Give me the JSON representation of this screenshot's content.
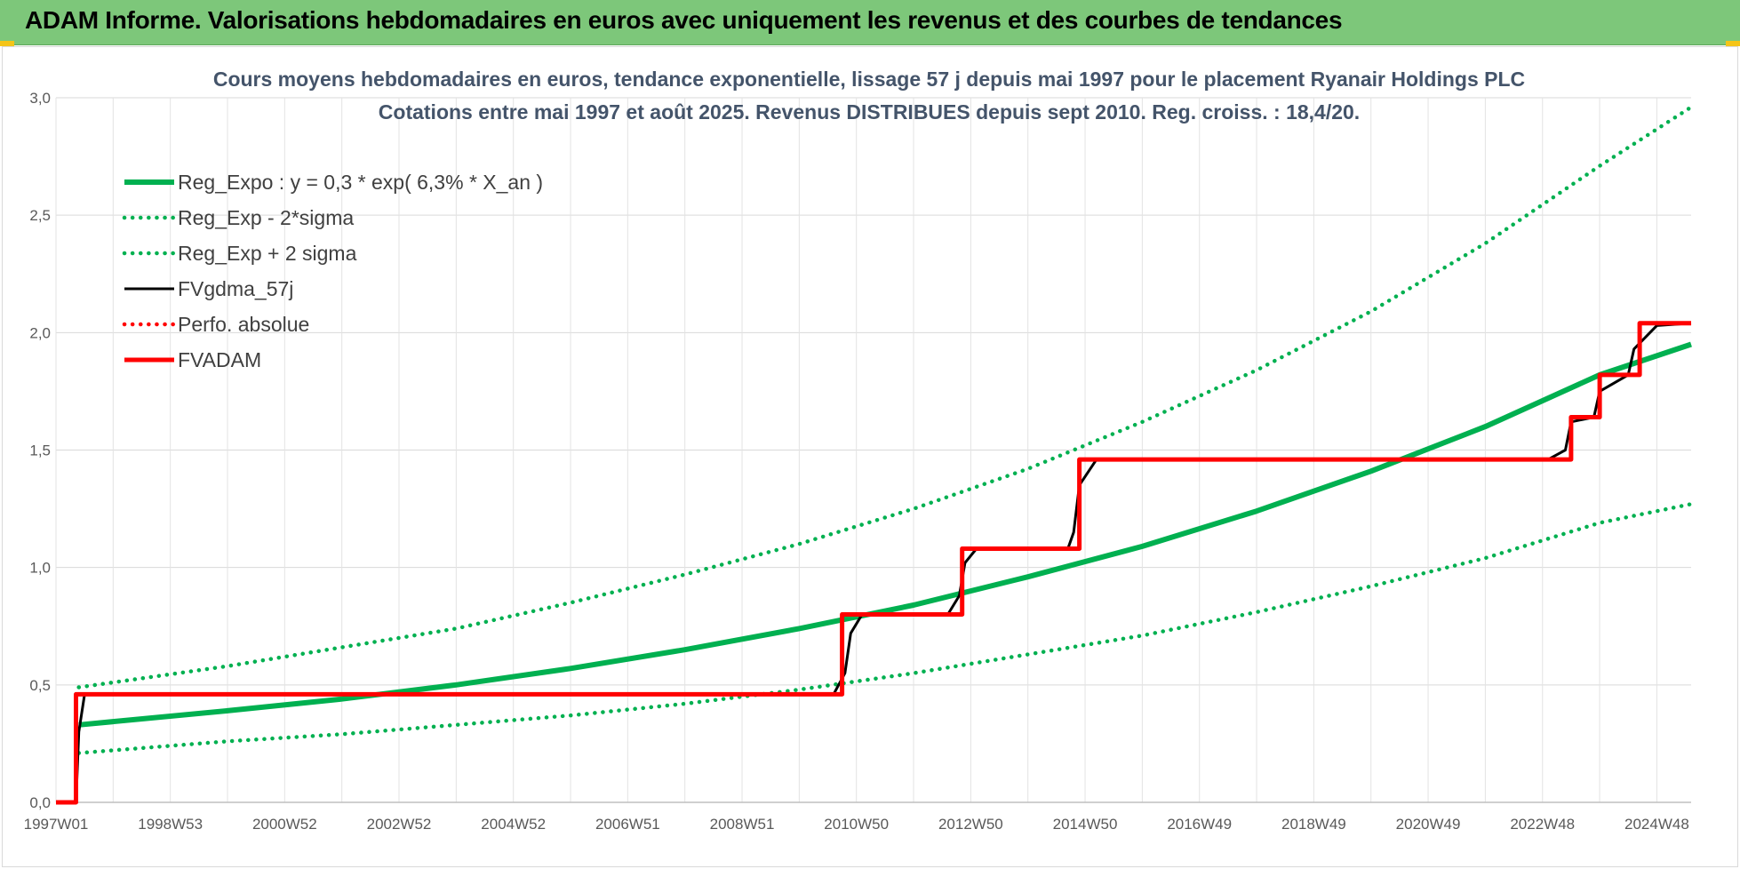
{
  "header": {
    "title": "ADAM Informe. Valorisations hebdomadaires en euros avec uniquement les revenus et des courbes de tendances"
  },
  "chart_data": {
    "type": "line",
    "title": "Cours moyens hebdomadaires en euros, tendance exponentielle, lissage 57 j depuis mai 1997 pour le placement Ryanair Holdings PLC",
    "subtitle": "Cotations entre mai 1997 et août 2025. Revenus DISTRIBUES depuis sept 2010. Reg. croiss. : 18,4/20.",
    "xlabel": "",
    "ylabel": "",
    "x_range": [
      1997.0,
      2025.6
    ],
    "ylim": [
      0,
      3.0
    ],
    "y_ticks": [
      "0,0",
      "0,5",
      "1,0",
      "1,5",
      "2,0",
      "2,5",
      "3,0"
    ],
    "y_tick_values": [
      0,
      0.5,
      1.0,
      1.5,
      2.0,
      2.5,
      3.0
    ],
    "x_ticks": [
      "1997W01",
      "1998W53",
      "2000W52",
      "2002W52",
      "2004W52",
      "2006W51",
      "2008W51",
      "2010W50",
      "2012W50",
      "2014W50",
      "2016W49",
      "2018W49",
      "2020W49",
      "2022W48",
      "2024W48"
    ],
    "x_tick_values": [
      1997.0,
      1999.0,
      2001.0,
      2003.0,
      2005.0,
      2007.0,
      2009.0,
      2011.0,
      2013.0,
      2015.0,
      2017.0,
      2019.0,
      2021.0,
      2023.0,
      2025.0
    ],
    "grid": true,
    "legend_position": "top-left",
    "series": [
      {
        "name": "Reg_Expo : y = 0,3 * exp( 6,3% *  X_an )",
        "style": "solid-thick",
        "color": "#00b050",
        "x": [
          1997.4,
          2000.0,
          2002.0,
          2004.0,
          2006.0,
          2008.0,
          2010.0,
          2012.0,
          2014.0,
          2016.0,
          2018.0,
          2020.0,
          2022.0,
          2024.0,
          2025.6
        ],
        "y": [
          0.33,
          0.39,
          0.44,
          0.5,
          0.57,
          0.65,
          0.74,
          0.84,
          0.96,
          1.09,
          1.24,
          1.41,
          1.6,
          1.82,
          1.95
        ]
      },
      {
        "name": "Reg_Exp - 2*sigma",
        "style": "dotted",
        "color": "#00b050",
        "x": [
          1997.4,
          2000.0,
          2002.0,
          2004.0,
          2006.0,
          2008.0,
          2010.0,
          2012.0,
          2014.0,
          2016.0,
          2018.0,
          2020.0,
          2022.0,
          2024.0,
          2025.6
        ],
        "y": [
          0.21,
          0.26,
          0.29,
          0.33,
          0.37,
          0.42,
          0.48,
          0.55,
          0.63,
          0.71,
          0.81,
          0.92,
          1.04,
          1.19,
          1.27
        ]
      },
      {
        "name": "Reg_Exp + 2 sigma",
        "style": "dotted",
        "color": "#00b050",
        "x": [
          1997.4,
          2000.0,
          2002.0,
          2004.0,
          2006.0,
          2008.0,
          2010.0,
          2012.0,
          2014.0,
          2016.0,
          2018.0,
          2020.0,
          2022.0,
          2024.0,
          2025.6
        ],
        "y": [
          0.49,
          0.58,
          0.66,
          0.74,
          0.85,
          0.97,
          1.1,
          1.25,
          1.42,
          1.62,
          1.84,
          2.09,
          2.38,
          2.71,
          2.96
        ]
      },
      {
        "name": "FVgdma_57j",
        "style": "solid",
        "color": "#000000",
        "x": [
          1997.0,
          1997.35,
          1997.4,
          1997.5,
          2010.6,
          2010.8,
          2010.9,
          2011.1,
          2012.6,
          2012.8,
          2012.9,
          2013.1,
          2014.7,
          2014.8,
          2014.9,
          2015.2,
          2023.1,
          2023.4,
          2023.5,
          2023.9,
          2024.0,
          2024.5,
          2024.6,
          2025.0,
          2025.6
        ],
        "y": [
          0.0,
          0.0,
          0.3,
          0.46,
          0.46,
          0.55,
          0.72,
          0.8,
          0.8,
          0.88,
          1.02,
          1.08,
          1.08,
          1.15,
          1.35,
          1.46,
          1.46,
          1.5,
          1.62,
          1.64,
          1.75,
          1.82,
          1.93,
          2.03,
          2.04
        ]
      },
      {
        "name": "Perfo. absolue",
        "style": "dotted",
        "color": "#ff0000",
        "x": [],
        "y": []
      },
      {
        "name": "FVADAM",
        "style": "step-thick",
        "color": "#ff0000",
        "x": [
          1997.0,
          1997.35,
          1997.35,
          2010.75,
          2010.75,
          2012.85,
          2012.85,
          2014.9,
          2014.9,
          2023.5,
          2023.5,
          2024.0,
          2024.0,
          2024.7,
          2024.7,
          2025.6
        ],
        "y": [
          0.0,
          0.0,
          0.46,
          0.46,
          0.8,
          0.8,
          1.08,
          1.08,
          1.46,
          1.46,
          1.64,
          1.64,
          1.82,
          1.82,
          2.04,
          2.04
        ]
      }
    ]
  }
}
